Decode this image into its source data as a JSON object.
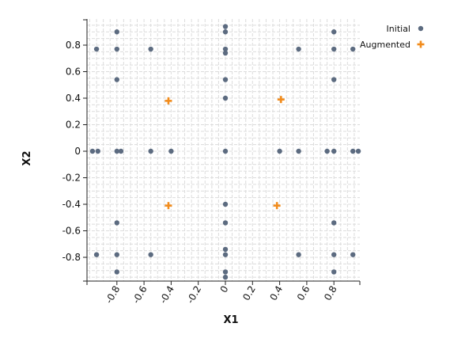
{
  "chart_data": {
    "type": "scatter",
    "xlabel": "X1",
    "ylabel": "X2",
    "xlim": [
      -1.0,
      1.0
    ],
    "ylim": [
      -0.98,
      0.98
    ],
    "xticks": [
      -0.8,
      -0.6,
      -0.4,
      -0.2,
      0,
      0.2,
      0.4,
      0.6,
      0.8
    ],
    "xtick_labels": [
      "-0.8",
      "-0.6",
      "-0.4",
      "-0.2",
      "0",
      "0.2",
      "0.4",
      "0.6",
      "0.8"
    ],
    "yticks": [
      -0.8,
      -0.6,
      -0.4,
      -0.2,
      0,
      0.2,
      0.4,
      0.6,
      0.8
    ],
    "ytick_labels": [
      "-0.8",
      "-0.6",
      "-0.4",
      "-0.2",
      "0",
      "0.2",
      "0.4",
      "0.6",
      "0.8"
    ],
    "grid": true,
    "legend_position": "top-right",
    "series": [
      {
        "name": "Initial",
        "marker": "circle",
        "color": "#5c6b80",
        "points": [
          [
            -0.8,
            0.9
          ],
          [
            -0.95,
            0.77
          ],
          [
            -0.8,
            0.77
          ],
          [
            -0.55,
            0.77
          ],
          [
            0,
            0.94
          ],
          [
            0,
            0.9
          ],
          [
            0,
            0.77
          ],
          [
            0,
            0.74
          ],
          [
            0.54,
            0.77
          ],
          [
            0.8,
            0.9
          ],
          [
            0.8,
            0.77
          ],
          [
            0.94,
            0.77
          ],
          [
            -0.8,
            0.54
          ],
          [
            0,
            0.54
          ],
          [
            0.8,
            0.54
          ],
          [
            0,
            0.4
          ],
          [
            -0.98,
            0
          ],
          [
            -0.94,
            0
          ],
          [
            -0.8,
            0
          ],
          [
            -0.77,
            0
          ],
          [
            -0.55,
            0
          ],
          [
            -0.4,
            0
          ],
          [
            0,
            0
          ],
          [
            0.4,
            0
          ],
          [
            0.54,
            0
          ],
          [
            0.75,
            0
          ],
          [
            0.8,
            0
          ],
          [
            0.94,
            0
          ],
          [
            0.98,
            0
          ],
          [
            0,
            -0.4
          ],
          [
            -0.8,
            -0.54
          ],
          [
            0,
            -0.54
          ],
          [
            0.8,
            -0.54
          ],
          [
            -0.95,
            -0.78
          ],
          [
            -0.8,
            -0.78
          ],
          [
            -0.55,
            -0.78
          ],
          [
            0,
            -0.74
          ],
          [
            0,
            -0.78
          ],
          [
            0.54,
            -0.78
          ],
          [
            0.8,
            -0.78
          ],
          [
            0.94,
            -0.78
          ],
          [
            -0.8,
            -0.91
          ],
          [
            0,
            -0.91
          ],
          [
            0,
            -0.95
          ],
          [
            0.8,
            -0.91
          ]
        ]
      },
      {
        "name": "Augmented",
        "marker": "plus",
        "color": "#f28c1c",
        "points": [
          [
            -0.42,
            0.38
          ],
          [
            0.41,
            0.39
          ],
          [
            -0.42,
            -0.41
          ],
          [
            0.38,
            -0.41
          ]
        ]
      }
    ]
  }
}
